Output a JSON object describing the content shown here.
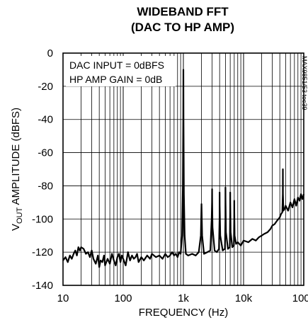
{
  "chart_data": {
    "type": "line",
    "title": [
      "WIDEBAND FFT",
      "(DAC TO HP AMP)"
    ],
    "xlabel": "FREQUENCY (Hz)",
    "ylabel": {
      "prefix": "V",
      "sub": "OUT",
      "rest": " AMPLITUDE (dBFS)"
    },
    "x_scale": "log",
    "xlim": [
      10,
      100000
    ],
    "ylim": [
      -140,
      0
    ],
    "x_ticks": [
      {
        "value": 10,
        "label": "10"
      },
      {
        "value": 100,
        "label": "100"
      },
      {
        "value": 1000,
        "label": "1k"
      },
      {
        "value": 10000,
        "label": "10k"
      },
      {
        "value": 100000,
        "label": "100k"
      }
    ],
    "y_ticks": [
      {
        "value": 0,
        "label": "0"
      },
      {
        "value": -20,
        "label": "-20"
      },
      {
        "value": -40,
        "label": "-40"
      },
      {
        "value": -60,
        "label": "-60"
      },
      {
        "value": -80,
        "label": "-80"
      },
      {
        "value": -100,
        "label": "-100"
      },
      {
        "value": -120,
        "label": "-120"
      },
      {
        "value": -140,
        "label": "-140"
      }
    ],
    "grid": true,
    "annotations": [
      "DAC INPUT = 0dBFS",
      "HP AMP GAIN = 0dB"
    ],
    "side_note": "MAX9851/53 toc39",
    "series": [
      {
        "x": [
          10,
          11,
          12,
          13,
          14,
          15,
          16,
          17,
          18,
          19,
          20,
          22,
          24,
          26,
          28,
          30,
          32,
          35,
          38,
          40,
          42,
          45,
          48,
          50,
          55,
          60,
          65,
          70,
          75,
          80,
          85,
          90,
          95,
          100,
          110,
          120,
          130,
          140,
          150,
          160,
          170,
          180,
          200,
          220,
          250,
          280,
          300,
          350,
          400,
          450,
          500,
          550,
          600,
          650,
          700,
          750,
          800,
          850,
          900,
          950,
          980,
          995,
          1000,
          1005,
          1020,
          1050,
          1100,
          1200,
          1400,
          1600,
          1800,
          1950,
          1990,
          2000,
          2010,
          2050,
          2200,
          2500,
          2800,
          2950,
          2990,
          3000,
          3010,
          3050,
          3300,
          3600,
          3900,
          3990,
          4000,
          4010,
          4100,
          4500,
          4900,
          4990,
          5000,
          5010,
          5100,
          5500,
          5900,
          5990,
          6000,
          6010,
          6100,
          6500,
          6900,
          6990,
          7000,
          7010,
          7100,
          7500,
          8000,
          9000,
          10000,
          12000,
          14000,
          16000,
          18000,
          20000,
          22000,
          25000,
          28000,
          30000,
          33000,
          36000,
          38000,
          40000,
          42000,
          44000,
          44900,
          45000,
          45100,
          46000,
          48000,
          50000,
          55000,
          60000,
          65000,
          70000,
          75000,
          80000,
          85000,
          90000,
          95000,
          100000
        ],
        "y": [
          -125,
          -123,
          -126,
          -122,
          -124,
          -121,
          -119,
          -122,
          -117,
          -119,
          -117,
          -118,
          -121,
          -120,
          -123,
          -119,
          -124,
          -127,
          -122,
          -129,
          -125,
          -126,
          -122,
          -128,
          -124,
          -127,
          -121,
          -125,
          -128,
          -123,
          -121,
          -126,
          -122,
          -124,
          -128,
          -120,
          -125,
          -122,
          -124,
          -123,
          -121,
          -126,
          -123,
          -125,
          -122,
          -124,
          -121,
          -123,
          -122,
          -124,
          -121,
          -123,
          -122,
          -120,
          -122,
          -121,
          -123,
          -120,
          -121,
          -110,
          -80,
          -40,
          -10,
          -40,
          -85,
          -110,
          -121,
          -122,
          -121,
          -122,
          -120,
          -110,
          -95,
          -91,
          -95,
          -110,
          -121,
          -120,
          -119,
          -100,
          -90,
          -82,
          -90,
          -105,
          -119,
          -120,
          -118,
          -100,
          -84,
          -92,
          -110,
          -119,
          -118,
          -100,
          -81,
          -88,
          -108,
          -118,
          -117,
          -95,
          -84,
          -90,
          -108,
          -117,
          -116,
          -100,
          -89,
          -95,
          -110,
          -115,
          -114,
          -116,
          -113,
          -114,
          -112,
          -113,
          -111,
          -110,
          -109,
          -108,
          -106,
          -104,
          -103,
          -101,
          -100,
          -99,
          -97,
          -96,
          -85,
          -70,
          -85,
          -95,
          -94,
          -92,
          -95,
          -90,
          -93,
          -88,
          -92,
          -87,
          -89,
          -85,
          -88,
          -85
        ]
      }
    ]
  }
}
